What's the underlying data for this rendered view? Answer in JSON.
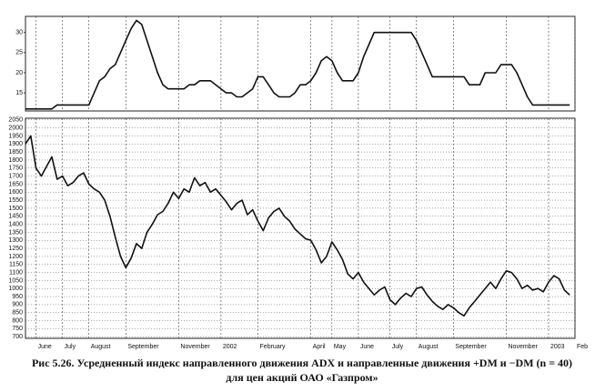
{
  "chart_data": [
    {
      "type": "line",
      "color": "#111111",
      "ylim": [
        10.5,
        34
      ],
      "yticks": [
        15,
        20,
        25,
        30
      ],
      "grid": true,
      "values": [
        11,
        11,
        11,
        11,
        11,
        11,
        12,
        12,
        12,
        12,
        12,
        12,
        12,
        15,
        18,
        19,
        21,
        22,
        25,
        28,
        31,
        33,
        32,
        28,
        24,
        20,
        17,
        16,
        16,
        16,
        16,
        17,
        17,
        18,
        18,
        18,
        17,
        16,
        15,
        15,
        14,
        14,
        15,
        16,
        19,
        19,
        17,
        15,
        14,
        14,
        14,
        15,
        17,
        17,
        18,
        20,
        23,
        24,
        23,
        20,
        18,
        18,
        18,
        20,
        24,
        27,
        30,
        30,
        30,
        30,
        30,
        30,
        30,
        30,
        28,
        25,
        22,
        19,
        19,
        19,
        19,
        19,
        19,
        19,
        17,
        17,
        17,
        20,
        20,
        20,
        22,
        22,
        22,
        20,
        17,
        14,
        12,
        12,
        12,
        12,
        12,
        12,
        12,
        12,
        null
      ]
    },
    {
      "type": "line",
      "color": "#111111",
      "ylim": [
        690,
        2060
      ],
      "yticks": [
        700,
        750,
        800,
        850,
        900,
        950,
        1000,
        1050,
        1100,
        1150,
        1200,
        1250,
        1300,
        1350,
        1400,
        1450,
        1500,
        1550,
        1600,
        1650,
        1700,
        1750,
        1800,
        1850,
        1900,
        1950,
        2000,
        2050
      ],
      "grid": true,
      "categories": [
        null,
        null,
        "June",
        null,
        null,
        null,
        null,
        "July",
        null,
        null,
        null,
        null,
        "August",
        null,
        null,
        null,
        null,
        null,
        null,
        "September",
        null,
        null,
        null,
        null,
        null,
        null,
        null,
        null,
        null,
        "November",
        null,
        null,
        null,
        null,
        null,
        null,
        null,
        "2002",
        null,
        null,
        null,
        null,
        null,
        null,
        "February",
        null,
        null,
        null,
        null,
        null,
        null,
        null,
        null,
        null,
        "April",
        null,
        null,
        null,
        "May",
        null,
        null,
        null,
        null,
        "June",
        null,
        null,
        null,
        null,
        null,
        "July",
        null,
        null,
        null,
        null,
        "August",
        null,
        null,
        null,
        null,
        null,
        null,
        "September",
        null,
        null,
        null,
        null,
        null,
        null,
        null,
        null,
        null,
        "November",
        null,
        null,
        null,
        null,
        null,
        null,
        null,
        "2003",
        null,
        null,
        null,
        null,
        "Feb"
      ],
      "values": [
        1900,
        1950,
        1750,
        1700,
        1760,
        1820,
        1680,
        1700,
        1640,
        1660,
        1700,
        1720,
        1650,
        1620,
        1600,
        1550,
        1450,
        1320,
        1200,
        1130,
        1190,
        1280,
        1250,
        1350,
        1400,
        1460,
        1480,
        1530,
        1600,
        1560,
        1620,
        1600,
        1690,
        1640,
        1660,
        1600,
        1620,
        1580,
        1540,
        1490,
        1530,
        1550,
        1460,
        1490,
        1420,
        1360,
        1440,
        1480,
        1500,
        1450,
        1420,
        1370,
        1340,
        1310,
        1300,
        1240,
        1160,
        1200,
        1290,
        1240,
        1180,
        1090,
        1060,
        1100,
        1040,
        1000,
        960,
        990,
        1010,
        930,
        900,
        940,
        970,
        950,
        1000,
        1010,
        960,
        920,
        890,
        870,
        900,
        880,
        850,
        830,
        880,
        920,
        960,
        1000,
        1040,
        1000,
        1060,
        1110,
        1100,
        1060,
        1000,
        1020,
        990,
        1000,
        980,
        1040,
        1080,
        1060,
        990,
        960,
        null
      ]
    }
  ],
  "caption": [
    "Рис 5.26. Усредненный индекс направленного движения ADX и направленные движения +DM и −DM (n = 40)",
    "для цен акций ОАО «Газпром»"
  ]
}
